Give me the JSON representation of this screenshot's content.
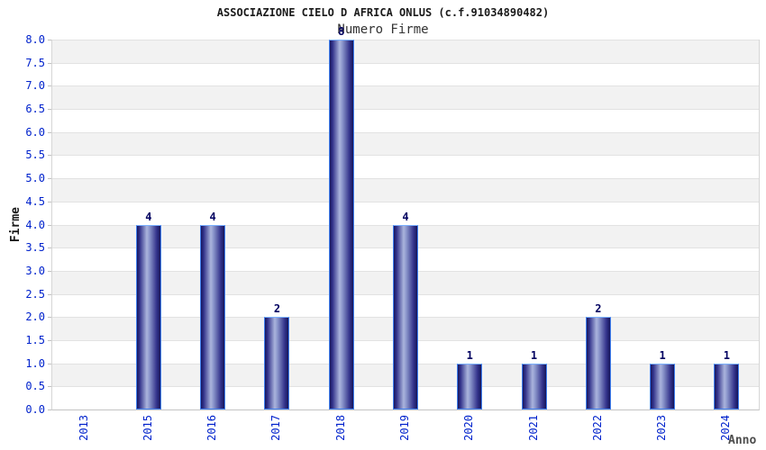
{
  "chart_data": {
    "type": "bar",
    "title": "ASSOCIAZIONE CIELO D AFRICA ONLUS (c.f.91034890482)",
    "subtitle": "Numero Firme",
    "xlabel": "Anno",
    "ylabel": "Firme",
    "categories": [
      "2013",
      "2015",
      "2016",
      "2017",
      "2018",
      "2019",
      "2020",
      "2021",
      "2022",
      "2023",
      "2024"
    ],
    "values": [
      0,
      4,
      4,
      2,
      8,
      4,
      1,
      1,
      2,
      1,
      1
    ],
    "bar_value_labels": [
      "",
      "4",
      "4",
      "2",
      "8",
      "4",
      "1",
      "1",
      "2",
      "1",
      "1"
    ],
    "ylim": [
      0,
      8
    ],
    "ytick_step": 0.5,
    "ytick_labels": [
      "0.0",
      "0.5",
      "1.0",
      "1.5",
      "2.0",
      "2.5",
      "3.0",
      "3.5",
      "4.0",
      "4.5",
      "5.0",
      "5.5",
      "6.0",
      "6.5",
      "7.0",
      "7.5",
      "8.0"
    ],
    "grid": "alternating-horizontal-bands",
    "legend": "none"
  },
  "colors": {
    "tick_label_blue": "#0022cc",
    "value_label_navy": "#000060",
    "title_color": "#1a1a1a",
    "subtitle_color": "#333333",
    "xlabel_color": "#4d4d4d",
    "band_gray": "#f2f2f2",
    "band_white": "#ffffff",
    "gridline": "#e2e2e2",
    "bar_dark": "#17175f",
    "bar_light": "#aab4dc",
    "bar_border": "#4080f0"
  }
}
